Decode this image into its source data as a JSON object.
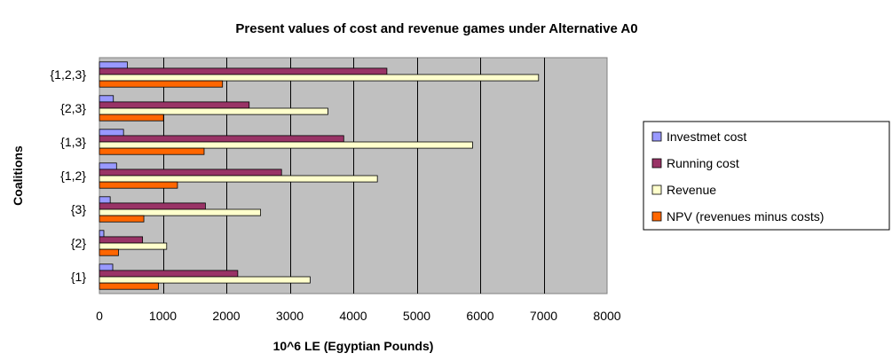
{
  "chart_data": {
    "type": "bar",
    "orientation": "horizontal",
    "title": "Present values of cost and revenue games under Alternative A0",
    "xlabel": "10^6 LE (Egyptian Pounds)",
    "ylabel": "Coalitions",
    "categories": [
      "{1}",
      "{2}",
      "{3}",
      "{1,2}",
      "{1,3}",
      "{2,3}",
      "{1,2,3}"
    ],
    "xlim": [
      0,
      8000
    ],
    "xticks": [
      0,
      1000,
      2000,
      3000,
      4000,
      5000,
      6000,
      7000,
      8000
    ],
    "xtick_labels": [
      "0",
      "1000",
      "2000",
      "3000",
      "4000",
      "5000",
      "6000",
      "7000",
      "8000"
    ],
    "grid": true,
    "legend_position": "right",
    "plot_background": "#c0c0c0",
    "series": [
      {
        "name": "Investmet cost",
        "color": "#9999ff",
        "values": [
          210,
          70,
          170,
          270,
          380,
          220,
          440
        ]
      },
      {
        "name": "Running cost",
        "color": "#993366",
        "values": [
          2180,
          680,
          1670,
          2870,
          3850,
          2360,
          4530
        ]
      },
      {
        "name": "Revenue",
        "color": "#ffffcc",
        "values": [
          3320,
          1060,
          2540,
          4380,
          5880,
          3600,
          6920
        ]
      },
      {
        "name": "NPV (revenues minus costs)",
        "color": "#ff6600",
        "values": [
          930,
          300,
          700,
          1230,
          1650,
          1010,
          1940
        ]
      }
    ]
  }
}
